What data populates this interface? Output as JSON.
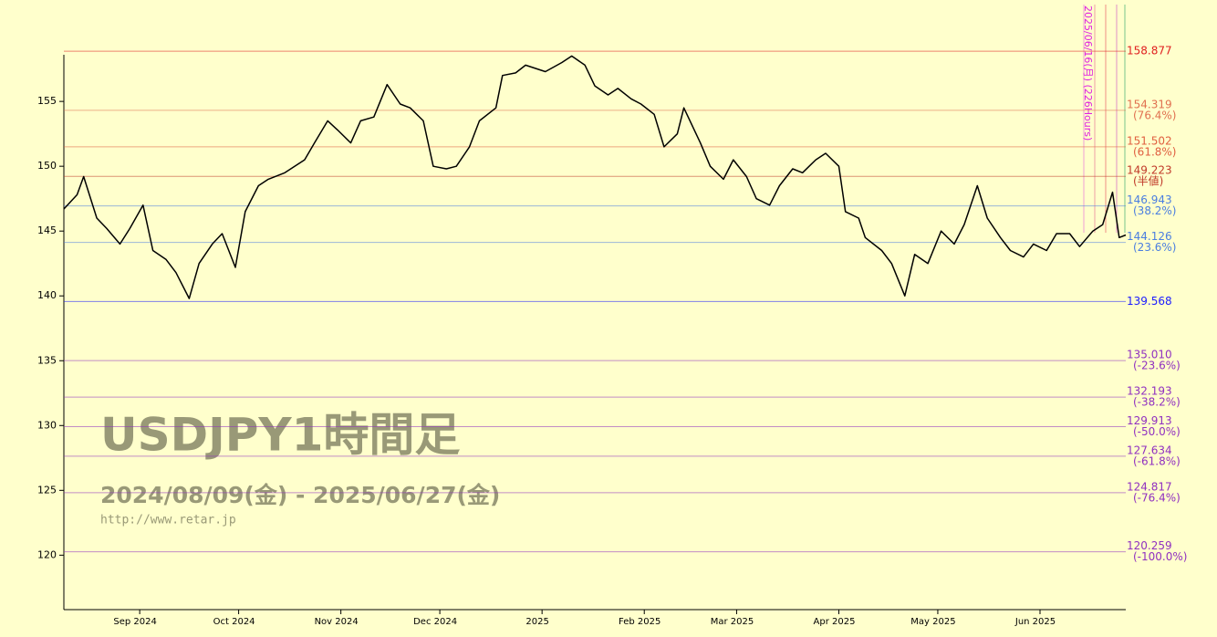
{
  "chart_data": {
    "type": "line",
    "title": "USDJPY1時間足",
    "subtitle": "2024/08/09(金) - 2025/06/27(金)",
    "source": "http://www.retar.jp",
    "annotation": "2025/06/16(月) (226Hours)",
    "x": [
      "2024-08-09",
      "2024-08-13",
      "2024-08-15",
      "2024-08-19",
      "2024-08-22",
      "2024-08-26",
      "2024-08-29",
      "2024-09-02",
      "2024-09-05",
      "2024-09-09",
      "2024-09-12",
      "2024-09-16",
      "2024-09-19",
      "2024-09-23",
      "2024-09-26",
      "2024-09-30",
      "2024-10-03",
      "2024-10-07",
      "2024-10-10",
      "2024-10-15",
      "2024-10-21",
      "2024-10-24",
      "2024-10-28",
      "2024-10-31",
      "2024-11-04",
      "2024-11-07",
      "2024-11-11",
      "2024-11-15",
      "2024-11-19",
      "2024-11-22",
      "2024-11-26",
      "2024-11-29",
      "2024-12-03",
      "2024-12-06",
      "2024-12-10",
      "2024-12-13",
      "2024-12-18",
      "2024-12-20",
      "2024-12-24",
      "2024-12-27",
      "2025-01-02",
      "2025-01-07",
      "2025-01-10",
      "2025-01-14",
      "2025-01-17",
      "2025-01-21",
      "2025-01-24",
      "2025-01-28",
      "2025-01-31",
      "2025-02-04",
      "2025-02-07",
      "2025-02-11",
      "2025-02-13",
      "2025-02-18",
      "2025-02-21",
      "2025-02-25",
      "2025-02-28",
      "2025-03-04",
      "2025-03-07",
      "2025-03-11",
      "2025-03-14",
      "2025-03-18",
      "2025-03-21",
      "2025-03-25",
      "2025-03-28",
      "2025-04-01",
      "2025-04-03",
      "2025-04-07",
      "2025-04-09",
      "2025-04-14",
      "2025-04-17",
      "2025-04-21",
      "2025-04-24",
      "2025-04-28",
      "2025-05-02",
      "2025-05-06",
      "2025-05-09",
      "2025-05-13",
      "2025-05-16",
      "2025-05-20",
      "2025-05-23",
      "2025-05-27",
      "2025-05-30",
      "2025-06-03",
      "2025-06-06",
      "2025-06-10",
      "2025-06-13",
      "2025-06-17",
      "2025-06-20",
      "2025-06-23",
      "2025-06-25",
      "2025-06-27"
    ],
    "series": [
      {
        "color": "#000000",
        "values": [
          146.7,
          147.8,
          149.2,
          146.0,
          145.2,
          144.0,
          145.2,
          147.0,
          143.5,
          142.8,
          141.8,
          139.8,
          142.5,
          144.0,
          144.8,
          142.2,
          146.5,
          148.5,
          149.0,
          149.5,
          150.5,
          151.8,
          153.5,
          152.8,
          151.8,
          153.5,
          153.8,
          156.3,
          154.8,
          154.5,
          153.5,
          150.0,
          149.8,
          150.0,
          151.5,
          153.5,
          154.5,
          157.0,
          157.2,
          157.8,
          157.3,
          158.0,
          158.5,
          157.8,
          156.2,
          155.5,
          156.0,
          155.2,
          154.8,
          154.0,
          151.5,
          152.5,
          154.5,
          151.8,
          150.0,
          149.0,
          150.5,
          149.2,
          147.5,
          147.0,
          148.5,
          149.8,
          149.5,
          150.5,
          151.0,
          150.0,
          146.5,
          146.0,
          144.5,
          143.5,
          142.5,
          140.0,
          143.2,
          142.5,
          145.0,
          144.0,
          145.5,
          148.5,
          146.0,
          144.5,
          143.5,
          143.0,
          144.0,
          143.5,
          144.8,
          144.8,
          143.8,
          145.0,
          145.5,
          148.0,
          144.5,
          144.7
        ]
      }
    ],
    "xlim": [
      "2024-08-09",
      "2025-06-27"
    ],
    "xticks": [
      {
        "value": "2024-09-01",
        "label": "Sep 2024"
      },
      {
        "value": "2024-10-01",
        "label": "Oct 2024"
      },
      {
        "value": "2024-11-01",
        "label": "Nov 2024"
      },
      {
        "value": "2024-12-01",
        "label": "Dec 2024"
      },
      {
        "value": "2025-01-01",
        "label": "2025"
      },
      {
        "value": "2025-02-01",
        "label": "Feb 2025"
      },
      {
        "value": "2025-03-01",
        "label": "Mar 2025"
      },
      {
        "value": "2025-04-01",
        "label": "Apr 2025"
      },
      {
        "value": "2025-05-01",
        "label": "May 2025"
      },
      {
        "value": "2025-06-01",
        "label": "Jun 2025"
      }
    ],
    "ylim": [
      115.8,
      158.6
    ],
    "yticks": [
      120,
      125,
      130,
      135,
      140,
      145,
      150,
      155
    ],
    "levels": [
      {
        "value": 158.877,
        "color": "#e02020"
      },
      {
        "value": 154.319,
        "ratio": "(76.4%)",
        "color": "#e07050"
      },
      {
        "value": 151.502,
        "ratio": "(61.8%)",
        "color": "#e06040"
      },
      {
        "value": 149.223,
        "ratio": "(半値)",
        "color": "#c03a2a"
      },
      {
        "value": 146.943,
        "ratio": "(38.2%)",
        "color": "#4a7ee0"
      },
      {
        "value": 144.126,
        "ratio": "(23.6%)",
        "color": "#4a7ee0"
      },
      {
        "value": 139.568,
        "color": "#1a1aff"
      },
      {
        "value": 135.01,
        "label": "135.010",
        "ratio": "(-23.6%)",
        "color": "#9030c0"
      },
      {
        "value": 132.193,
        "ratio": "(-38.2%)",
        "color": "#9030c0"
      },
      {
        "value": 129.913,
        "ratio": "(-50.0%)",
        "color": "#9030c0"
      },
      {
        "value": 127.634,
        "ratio": "(-61.8%)",
        "color": "#9030c0"
      },
      {
        "value": 124.817,
        "ratio": "(-76.4%)",
        "color": "#9030c0"
      },
      {
        "value": 120.259,
        "ratio": "(-100.0%)",
        "color": "#9030c0"
      }
    ]
  }
}
